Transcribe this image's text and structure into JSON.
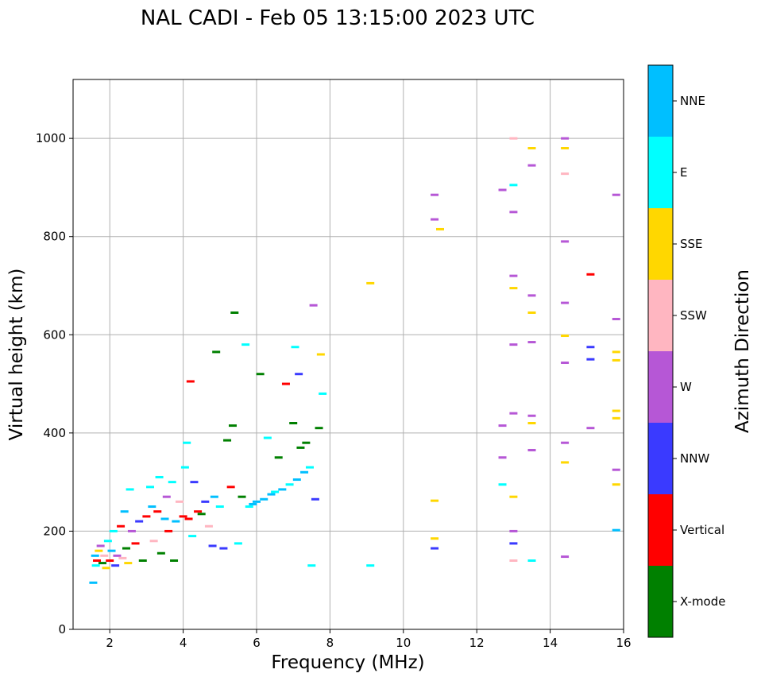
{
  "chart_data": {
    "type": "scatter",
    "title": "NAL CADI - Feb 05 13:15:00 2023 UTC",
    "xlabel": "Frequency (MHz)",
    "ylabel": "Virtual height (km)",
    "xlim": [
      1,
      16
    ],
    "ylim": [
      0,
      1120
    ],
    "xticks": [
      2,
      4,
      6,
      8,
      10,
      12,
      14,
      16
    ],
    "yticks": [
      0,
      200,
      400,
      600,
      800,
      1000
    ],
    "grid": true,
    "colorbar": {
      "label": "Azimuth Direction",
      "categories": [
        {
          "name": "X-mode",
          "color": "#008000"
        },
        {
          "name": "Vertical",
          "color": "#ff0000"
        },
        {
          "name": "NNW",
          "color": "#3a3aff"
        },
        {
          "name": "W",
          "color": "#b657d6"
        },
        {
          "name": "SSW",
          "color": "#ffb6c1"
        },
        {
          "name": "SSE",
          "color": "#ffd700"
        },
        {
          "name": "E",
          "color": "#00ffff"
        },
        {
          "name": "NNE",
          "color": "#00bfff"
        }
      ]
    },
    "points": [
      {
        "f": 1.55,
        "h": 95,
        "c": 7
      },
      {
        "f": 1.6,
        "h": 150,
        "c": 7
      },
      {
        "f": 1.65,
        "h": 140,
        "c": 1
      },
      {
        "f": 1.7,
        "h": 160,
        "c": 5
      },
      {
        "f": 1.62,
        "h": 130,
        "c": 6
      },
      {
        "f": 1.75,
        "h": 170,
        "c": 3
      },
      {
        "f": 1.8,
        "h": 135,
        "c": 0
      },
      {
        "f": 1.85,
        "h": 150,
        "c": 4
      },
      {
        "f": 1.9,
        "h": 125,
        "c": 5
      },
      {
        "f": 1.95,
        "h": 180,
        "c": 6
      },
      {
        "f": 2.0,
        "h": 140,
        "c": 1
      },
      {
        "f": 2.05,
        "h": 160,
        "c": 7
      },
      {
        "f": 2.1,
        "h": 200,
        "c": 6
      },
      {
        "f": 2.15,
        "h": 130,
        "c": 2
      },
      {
        "f": 2.2,
        "h": 150,
        "c": 3
      },
      {
        "f": 2.3,
        "h": 210,
        "c": 1
      },
      {
        "f": 2.35,
        "h": 145,
        "c": 4
      },
      {
        "f": 2.4,
        "h": 240,
        "c": 7
      },
      {
        "f": 2.45,
        "h": 165,
        "c": 0
      },
      {
        "f": 2.5,
        "h": 135,
        "c": 5
      },
      {
        "f": 2.55,
        "h": 285,
        "c": 6
      },
      {
        "f": 2.6,
        "h": 200,
        "c": 3
      },
      {
        "f": 2.7,
        "h": 175,
        "c": 1
      },
      {
        "f": 2.8,
        "h": 220,
        "c": 2
      },
      {
        "f": 2.9,
        "h": 140,
        "c": 0
      },
      {
        "f": 3.0,
        "h": 230,
        "c": 1
      },
      {
        "f": 3.1,
        "h": 290,
        "c": 6
      },
      {
        "f": 3.15,
        "h": 250,
        "c": 7
      },
      {
        "f": 3.2,
        "h": 180,
        "c": 4
      },
      {
        "f": 3.3,
        "h": 240,
        "c": 1
      },
      {
        "f": 3.35,
        "h": 310,
        "c": 6
      },
      {
        "f": 3.4,
        "h": 155,
        "c": 0
      },
      {
        "f": 3.5,
        "h": 225,
        "c": 7
      },
      {
        "f": 3.55,
        "h": 270,
        "c": 3
      },
      {
        "f": 3.6,
        "h": 200,
        "c": 1
      },
      {
        "f": 3.7,
        "h": 300,
        "c": 6
      },
      {
        "f": 3.75,
        "h": 140,
        "c": 0
      },
      {
        "f": 3.8,
        "h": 220,
        "c": 7
      },
      {
        "f": 3.9,
        "h": 260,
        "c": 4
      },
      {
        "f": 4.0,
        "h": 230,
        "c": 1
      },
      {
        "f": 4.05,
        "h": 330,
        "c": 6
      },
      {
        "f": 4.1,
        "h": 380,
        "c": 6
      },
      {
        "f": 4.15,
        "h": 225,
        "c": 1
      },
      {
        "f": 4.2,
        "h": 505,
        "c": 1
      },
      {
        "f": 4.25,
        "h": 190,
        "c": 6
      },
      {
        "f": 4.3,
        "h": 300,
        "c": 2
      },
      {
        "f": 4.4,
        "h": 240,
        "c": 1
      },
      {
        "f": 4.5,
        "h": 235,
        "c": 0
      },
      {
        "f": 4.6,
        "h": 260,
        "c": 2
      },
      {
        "f": 4.7,
        "h": 210,
        "c": 4
      },
      {
        "f": 4.8,
        "h": 170,
        "c": 2
      },
      {
        "f": 4.85,
        "h": 270,
        "c": 7
      },
      {
        "f": 4.9,
        "h": 565,
        "c": 0
      },
      {
        "f": 5.0,
        "h": 250,
        "c": 6
      },
      {
        "f": 5.1,
        "h": 165,
        "c": 2
      },
      {
        "f": 5.2,
        "h": 385,
        "c": 0
      },
      {
        "f": 5.3,
        "h": 290,
        "c": 1
      },
      {
        "f": 5.35,
        "h": 415,
        "c": 0
      },
      {
        "f": 5.4,
        "h": 645,
        "c": 0
      },
      {
        "f": 5.5,
        "h": 175,
        "c": 6
      },
      {
        "f": 5.6,
        "h": 270,
        "c": 0
      },
      {
        "f": 5.7,
        "h": 580,
        "c": 6
      },
      {
        "f": 5.8,
        "h": 250,
        "c": 6
      },
      {
        "f": 5.9,
        "h": 255,
        "c": 7
      },
      {
        "f": 6.0,
        "h": 260,
        "c": 7
      },
      {
        "f": 6.1,
        "h": 520,
        "c": 0
      },
      {
        "f": 6.2,
        "h": 265,
        "c": 7
      },
      {
        "f": 6.3,
        "h": 390,
        "c": 6
      },
      {
        "f": 6.4,
        "h": 275,
        "c": 7
      },
      {
        "f": 6.5,
        "h": 280,
        "c": 6
      },
      {
        "f": 6.6,
        "h": 350,
        "c": 0
      },
      {
        "f": 6.7,
        "h": 285,
        "c": 7
      },
      {
        "f": 6.8,
        "h": 500,
        "c": 1
      },
      {
        "f": 6.9,
        "h": 295,
        "c": 6
      },
      {
        "f": 7.0,
        "h": 420,
        "c": 0
      },
      {
        "f": 7.05,
        "h": 575,
        "c": 6
      },
      {
        "f": 7.1,
        "h": 305,
        "c": 7
      },
      {
        "f": 7.15,
        "h": 520,
        "c": 2
      },
      {
        "f": 7.2,
        "h": 370,
        "c": 0
      },
      {
        "f": 7.3,
        "h": 320,
        "c": 7
      },
      {
        "f": 7.35,
        "h": 380,
        "c": 0
      },
      {
        "f": 7.45,
        "h": 330,
        "c": 6
      },
      {
        "f": 7.5,
        "h": 130,
        "c": 6
      },
      {
        "f": 7.55,
        "h": 660,
        "c": 3
      },
      {
        "f": 7.6,
        "h": 265,
        "c": 2
      },
      {
        "f": 7.7,
        "h": 410,
        "c": 0
      },
      {
        "f": 7.75,
        "h": 560,
        "c": 5
      },
      {
        "f": 7.8,
        "h": 480,
        "c": 6
      },
      {
        "f": 9.1,
        "h": 705,
        "c": 5
      },
      {
        "f": 9.1,
        "h": 130,
        "c": 6
      },
      {
        "f": 10.85,
        "h": 885,
        "c": 3
      },
      {
        "f": 10.85,
        "h": 835,
        "c": 3
      },
      {
        "f": 11.0,
        "h": 815,
        "c": 5
      },
      {
        "f": 10.85,
        "h": 262,
        "c": 5
      },
      {
        "f": 10.85,
        "h": 185,
        "c": 5
      },
      {
        "f": 10.85,
        "h": 165,
        "c": 2
      },
      {
        "f": 12.7,
        "h": 895,
        "c": 3
      },
      {
        "f": 12.7,
        "h": 415,
        "c": 3
      },
      {
        "f": 12.7,
        "h": 350,
        "c": 3
      },
      {
        "f": 12.7,
        "h": 295,
        "c": 6
      },
      {
        "f": 13.0,
        "h": 1000,
        "c": 4
      },
      {
        "f": 13.0,
        "h": 905,
        "c": 6
      },
      {
        "f": 13.0,
        "h": 850,
        "c": 3
      },
      {
        "f": 13.0,
        "h": 720,
        "c": 3
      },
      {
        "f": 13.0,
        "h": 695,
        "c": 5
      },
      {
        "f": 13.0,
        "h": 580,
        "c": 3
      },
      {
        "f": 13.0,
        "h": 440,
        "c": 3
      },
      {
        "f": 13.0,
        "h": 270,
        "c": 5
      },
      {
        "f": 13.0,
        "h": 200,
        "c": 3
      },
      {
        "f": 13.0,
        "h": 175,
        "c": 2
      },
      {
        "f": 13.0,
        "h": 140,
        "c": 4
      },
      {
        "f": 13.5,
        "h": 980,
        "c": 5
      },
      {
        "f": 13.5,
        "h": 945,
        "c": 3
      },
      {
        "f": 13.5,
        "h": 680,
        "c": 3
      },
      {
        "f": 13.5,
        "h": 645,
        "c": 5
      },
      {
        "f": 13.5,
        "h": 585,
        "c": 3
      },
      {
        "f": 13.5,
        "h": 435,
        "c": 3
      },
      {
        "f": 13.5,
        "h": 420,
        "c": 5
      },
      {
        "f": 13.5,
        "h": 365,
        "c": 3
      },
      {
        "f": 13.5,
        "h": 140,
        "c": 6
      },
      {
        "f": 14.4,
        "h": 1000,
        "c": 3
      },
      {
        "f": 14.4,
        "h": 980,
        "c": 5
      },
      {
        "f": 14.4,
        "h": 928,
        "c": 4
      },
      {
        "f": 14.4,
        "h": 790,
        "c": 3
      },
      {
        "f": 14.4,
        "h": 665,
        "c": 3
      },
      {
        "f": 14.4,
        "h": 598,
        "c": 5
      },
      {
        "f": 14.4,
        "h": 543,
        "c": 3
      },
      {
        "f": 14.4,
        "h": 380,
        "c": 3
      },
      {
        "f": 14.4,
        "h": 340,
        "c": 5
      },
      {
        "f": 14.4,
        "h": 148,
        "c": 3
      },
      {
        "f": 15.1,
        "h": 723,
        "c": 1
      },
      {
        "f": 15.1,
        "h": 575,
        "c": 2
      },
      {
        "f": 15.1,
        "h": 550,
        "c": 2
      },
      {
        "f": 15.1,
        "h": 410,
        "c": 3
      },
      {
        "f": 15.8,
        "h": 885,
        "c": 3
      },
      {
        "f": 15.8,
        "h": 632,
        "c": 3
      },
      {
        "f": 15.8,
        "h": 565,
        "c": 5
      },
      {
        "f": 15.8,
        "h": 548,
        "c": 5
      },
      {
        "f": 15.8,
        "h": 445,
        "c": 5
      },
      {
        "f": 15.8,
        "h": 430,
        "c": 5
      },
      {
        "f": 15.8,
        "h": 325,
        "c": 3
      },
      {
        "f": 15.8,
        "h": 295,
        "c": 5
      },
      {
        "f": 15.8,
        "h": 202,
        "c": 7
      }
    ]
  }
}
